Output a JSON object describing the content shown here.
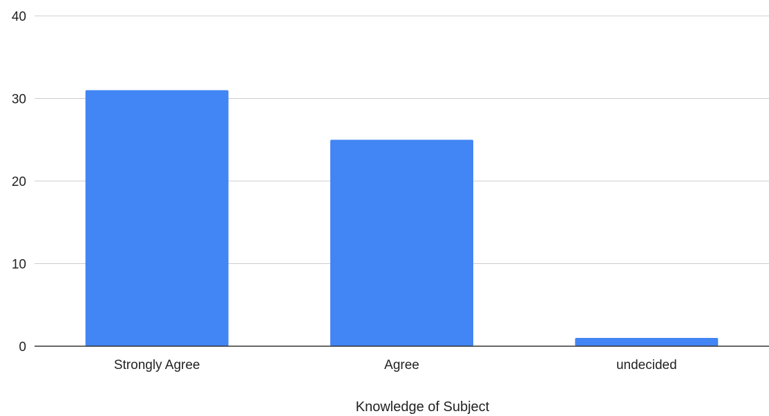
{
  "chart_data": {
    "type": "bar",
    "categories": [
      "Strongly Agree",
      "Agree",
      "undecided"
    ],
    "values": [
      31,
      25,
      1
    ],
    "xlabel": "Knowledge of Subject",
    "ylabel": "",
    "ylim": [
      0,
      40
    ],
    "yticks": [
      "0",
      "10",
      "20",
      "30",
      "40"
    ],
    "grid": true,
    "legend": "none",
    "colors": {
      "bar": "#4285f4",
      "gridline": "#cccccc",
      "baseline": "#333333",
      "text": "#222222"
    }
  }
}
